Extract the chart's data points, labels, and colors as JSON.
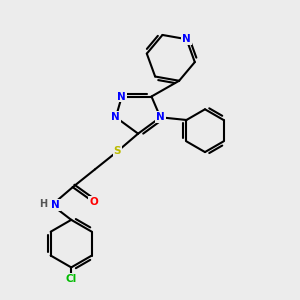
{
  "bg_color": "#ececec",
  "bond_color": "#000000",
  "atom_colors": {
    "N": "#0000ff",
    "O": "#ff0000",
    "S": "#bbbb00",
    "Cl": "#00bb00",
    "H": "#555555",
    "C": "#000000"
  },
  "lw": 1.5
}
